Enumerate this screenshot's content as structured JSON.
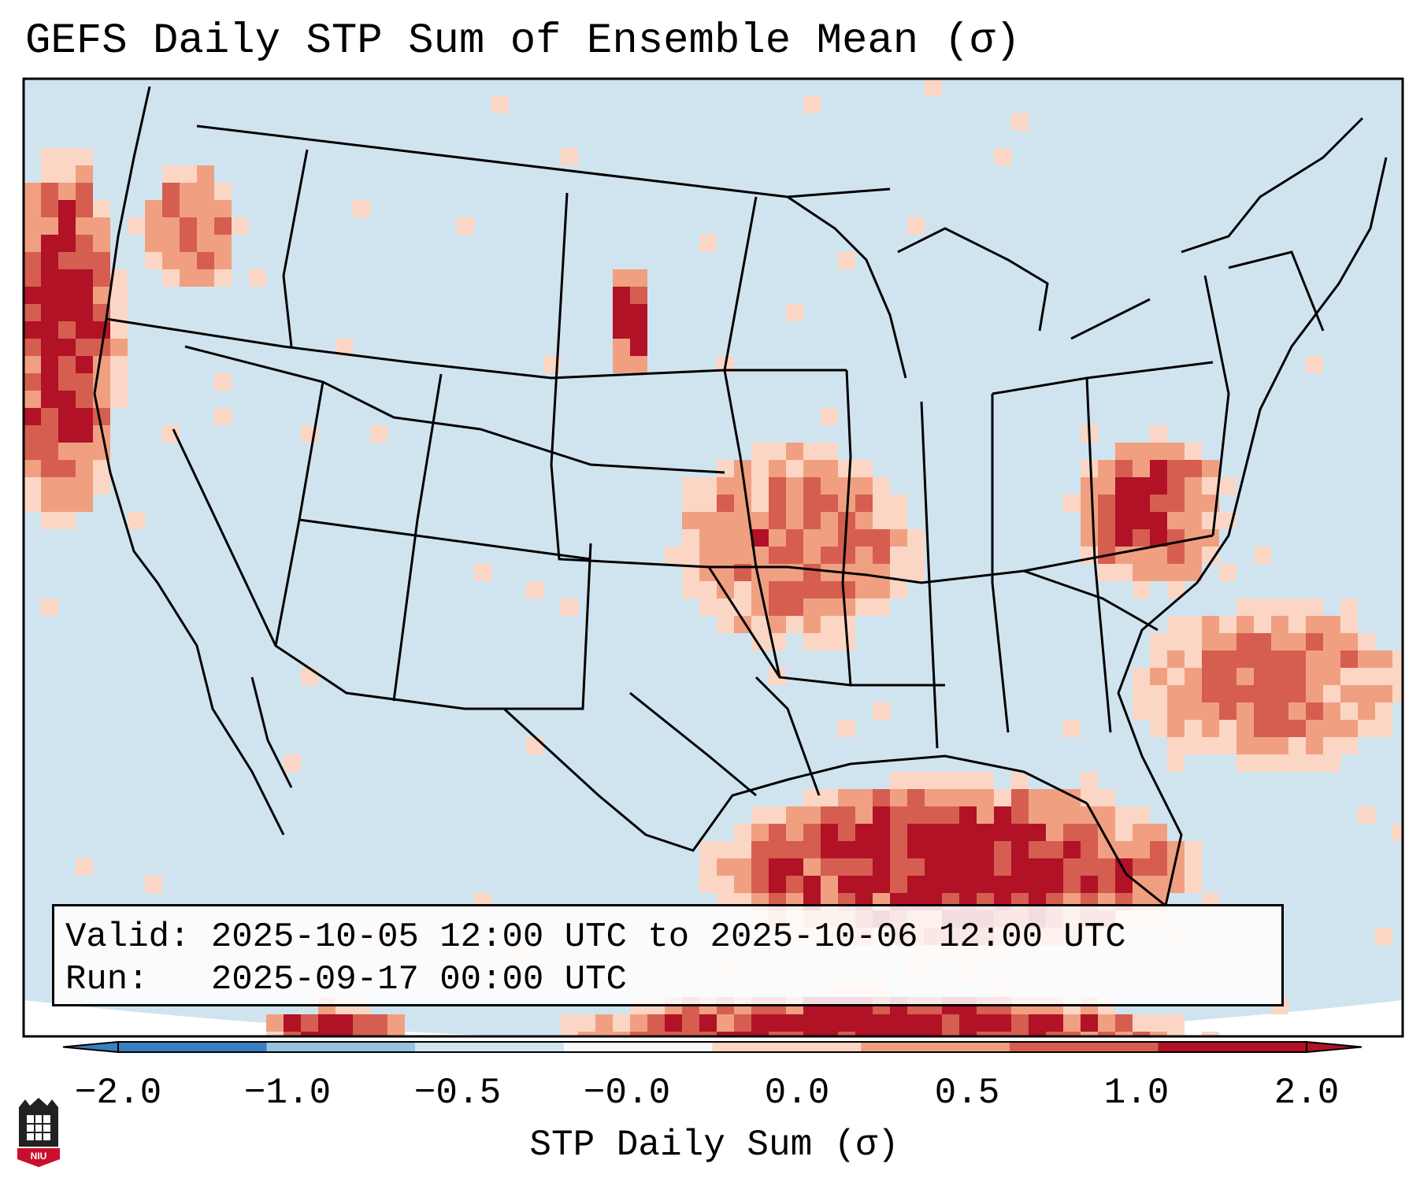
{
  "title": "GEFS Daily STP Sum of Ensemble Mean (σ)",
  "info": {
    "valid_line": "Valid: 2025-10-05 12:00 UTC to 2025-10-06 12:00 UTC",
    "run_line": "Run:   2025-09-17 00:00 UTC"
  },
  "colorbar": {
    "label": "STP Daily Sum (σ)",
    "ticks": [
      "−2.0",
      "−1.0",
      "−0.5",
      "−0.0",
      "0.0",
      "0.5",
      "1.0",
      "2.0"
    ],
    "colors": [
      "#3a7fbf",
      "#94c4df",
      "#d0e4f0",
      "#f8f8f8",
      "#fbd6c4",
      "#f0a081",
      "#d55e50",
      "#b11226"
    ],
    "extend": "both"
  },
  "map": {
    "projection": "Lambert Conformal",
    "region": "Contiguous United States",
    "background_color": "#d0e4f0",
    "features": [
      "coastlines",
      "state borders",
      "country borders"
    ]
  },
  "logo": {
    "text": "NIU"
  }
}
